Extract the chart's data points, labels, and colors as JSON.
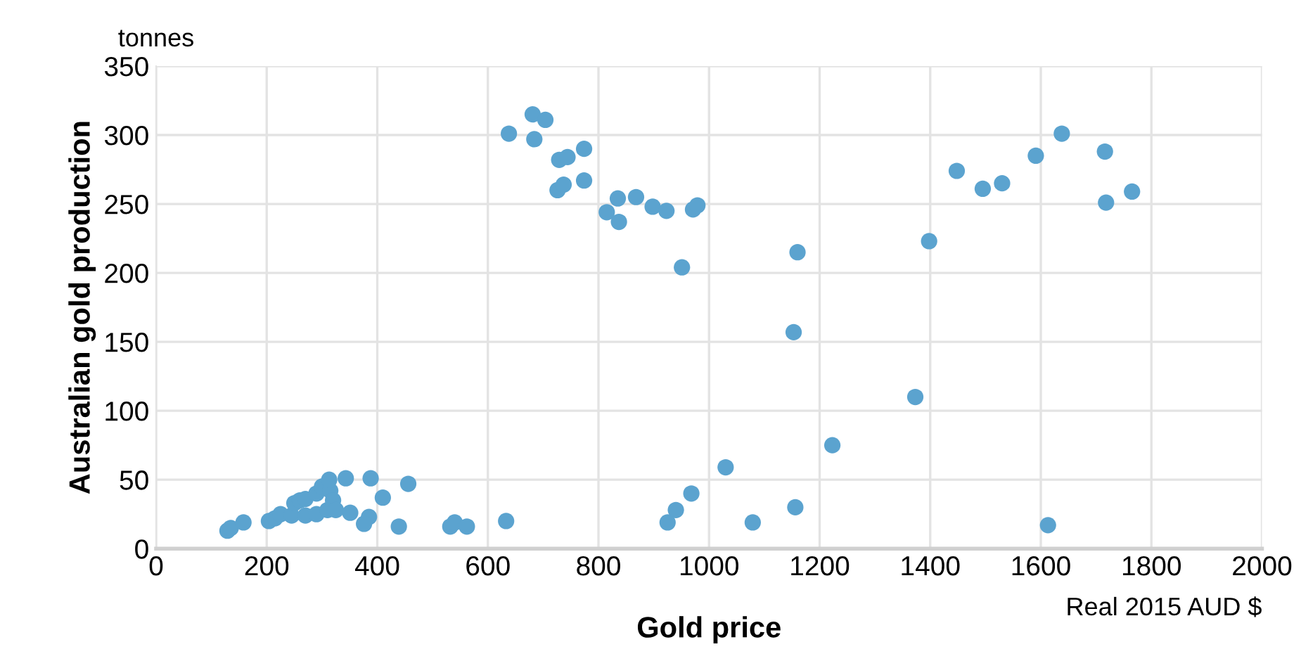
{
  "chart_data": {
    "type": "scatter",
    "xlabel": "Gold price",
    "ylabel": "Australian gold production",
    "annotations": [
      "tonnes",
      "Real 2015 AUD $"
    ],
    "xlim": [
      0,
      2000
    ],
    "xticks": [
      0,
      200,
      400,
      600,
      800,
      1000,
      1200,
      1400,
      1600,
      1800,
      2000
    ],
    "ylim": [
      0,
      350
    ],
    "yticks": [
      0,
      50,
      100,
      150,
      200,
      250,
      300,
      350
    ],
    "grid": true,
    "marker": "circle",
    "series": [
      {
        "color": "#5ba3cf",
        "x": [
          129,
          135,
          158,
          204,
          215,
          225,
          245,
          250,
          260,
          270,
          270,
          290,
          290,
          300,
          310,
          315,
          320,
          325,
          313,
          343,
          388,
          456,
          410,
          351,
          385,
          376,
          439,
          532,
          540,
          562,
          633,
          1030,
          968,
          940,
          925,
          1079,
          1156,
          1223,
          1398,
          1448,
          1495,
          1530,
          1591,
          1638,
          1716,
          1718,
          1765,
          1373,
          1613,
          638,
          681,
          704,
          684,
          729,
          744,
          726,
          737,
          774,
          774,
          815,
          835,
          837,
          868,
          898,
          923,
          971,
          979,
          951,
          1160,
          1153
        ],
        "values": [
          13,
          15,
          19,
          20,
          22,
          25,
          24,
          33,
          35,
          24,
          36,
          25,
          40,
          45,
          28,
          42,
          35,
          28,
          50,
          51,
          51,
          47,
          37,
          26,
          23,
          18,
          16,
          16,
          19,
          16,
          20,
          59,
          40,
          28,
          19,
          19,
          30,
          75,
          223,
          274,
          261,
          265,
          285,
          301,
          288,
          251,
          259,
          110,
          17,
          301,
          315,
          311,
          297,
          282,
          284,
          260,
          264,
          290,
          267,
          244,
          254,
          237,
          255,
          248,
          245,
          246,
          249,
          204,
          215,
          157
        ]
      }
    ]
  }
}
